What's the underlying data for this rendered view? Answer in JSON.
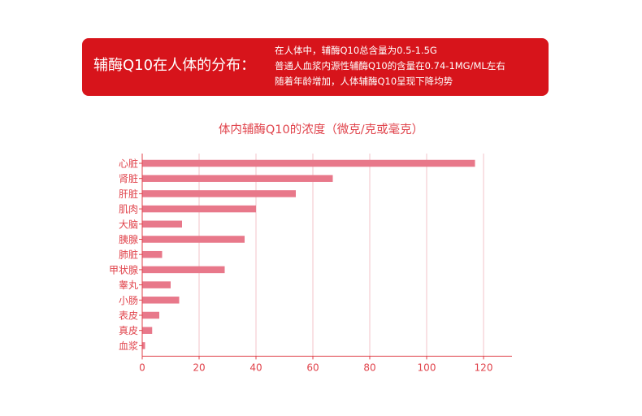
{
  "banner": {
    "title": "辅酶Q10在人体的分布：",
    "lines": [
      "在人体中，辅酶Q10总含量为0.5-1.5G",
      "普通人血浆内源性辅酶Q10的含量在0.74-1MG/ML左右",
      "随着年龄增加，人体辅酶Q10呈现下降均势"
    ]
  },
  "colors": {
    "banner": "#d7141b",
    "bar": "#e8788a",
    "axis": "#e0434b",
    "grid": "#f3c3c9"
  },
  "chart_data": {
    "type": "bar",
    "orientation": "horizontal",
    "title": "体内辅酶Q10的浓度（微克/克或毫克）",
    "categories": [
      "心脏",
      "肾脏",
      "肝脏",
      "肌肉",
      "大脑",
      "胰腺",
      "肺脏",
      "甲状腺",
      "睾丸",
      "小肠",
      "表皮",
      "真皮",
      "血浆"
    ],
    "values": [
      117,
      67,
      54,
      40,
      14,
      36,
      7,
      29,
      10,
      13,
      6,
      3.5,
      1
    ],
    "xlim": [
      0,
      130
    ],
    "xticks": [
      0,
      20,
      40,
      60,
      80,
      100,
      120
    ],
    "grid": true
  }
}
